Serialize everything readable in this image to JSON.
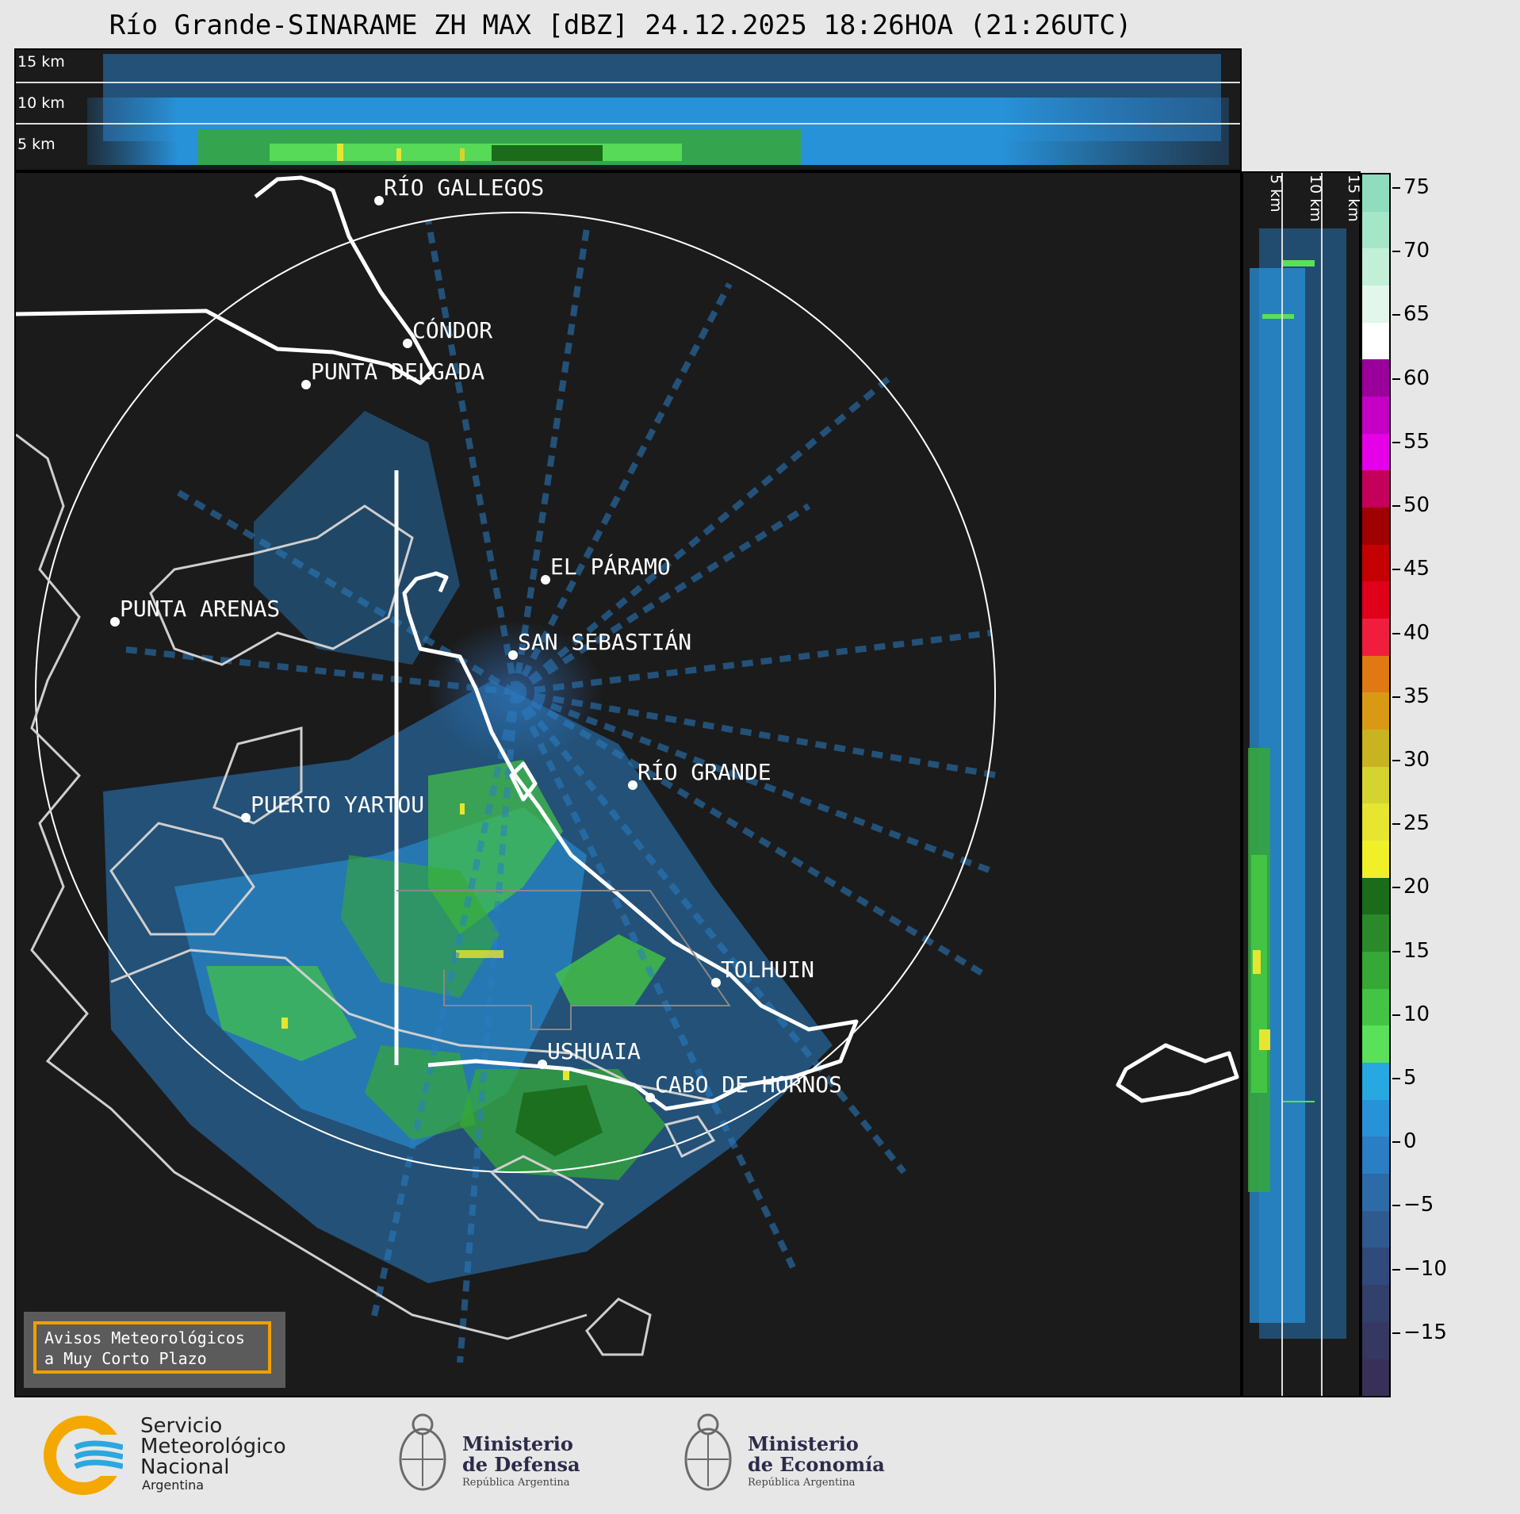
{
  "header": {
    "title": "Río Grande-SINARAME ZH MAX [dBZ] 24.12.2025 18:26HOA (21:26UTC)"
  },
  "top_profile": {
    "levels": [
      "15 km",
      "10 km",
      "5 km"
    ]
  },
  "side_profile": {
    "levels": [
      "5 km",
      "10 km",
      "15 km"
    ]
  },
  "map": {
    "cities": [
      {
        "name": "RÍO GALLEGOS"
      },
      {
        "name": "CÓNDOR"
      },
      {
        "name": "PUNTA DELGADA"
      },
      {
        "name": "EL PÁRAMO"
      },
      {
        "name": "SAN SEBASTIÁN"
      },
      {
        "name": "PUNTA ARENAS"
      },
      {
        "name": "RÍO GRANDE"
      },
      {
        "name": "PUERTO YARTOU"
      },
      {
        "name": "TOLHUIN"
      },
      {
        "name": "USHUAIA"
      },
      {
        "name": "CABO DE HORNOS"
      }
    ],
    "notice": {
      "line1": "Avisos Meteorológicos",
      "line2": "a Muy Corto Plazo"
    }
  },
  "colorbar": {
    "unit": "dBZ",
    "min": -20,
    "max": 76,
    "ticks": [
      "75",
      "70",
      "65",
      "60",
      "55",
      "50",
      "45",
      "40",
      "35",
      "30",
      "25",
      "20",
      "15",
      "10",
      "5",
      "0",
      "−5",
      "−10",
      "−15"
    ],
    "tick_values": [
      75,
      70,
      65,
      60,
      55,
      50,
      45,
      40,
      35,
      30,
      25,
      20,
      15,
      10,
      5,
      0,
      -5,
      -10,
      -15
    ],
    "colors": [
      "#8fdcbe",
      "#a6e6c8",
      "#c2efd8",
      "#e2f6ec",
      "#ffffff",
      "#9a009a",
      "#c400c4",
      "#e600e6",
      "#c4005a",
      "#a00000",
      "#c40000",
      "#e0001a",
      "#f01e3c",
      "#e07814",
      "#d89a14",
      "#c8b420",
      "#d4d430",
      "#e6e630",
      "#f0f028",
      "#1a6b1a",
      "#2a8a2a",
      "#36a836",
      "#44c444",
      "#5ae05a",
      "#28a8e0",
      "#2892d8",
      "#2a7ec4",
      "#2c6aa8",
      "#2e5a90",
      "#304a7c",
      "#33406c",
      "#363862",
      "#393058"
    ]
  },
  "logos": {
    "smn": {
      "line1": "Servicio",
      "line2": "Meteorológico",
      "line3": "Nacional",
      "line4": "Argentina"
    },
    "defensa": {
      "line1": "Ministerio",
      "line2": "de Defensa",
      "line3": "República Argentina"
    },
    "economia": {
      "line1": "Ministerio",
      "line2": "de Economía",
      "line3": "República Argentina"
    }
  }
}
